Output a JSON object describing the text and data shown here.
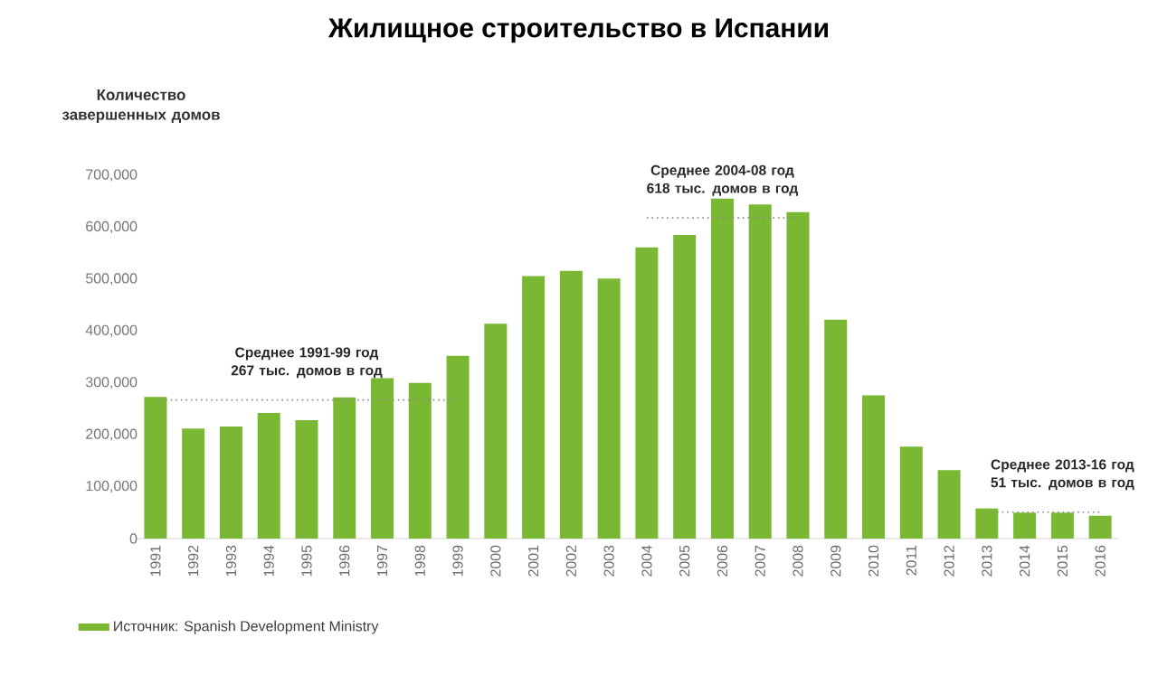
{
  "chart_data": {
    "type": "bar",
    "title": "Жилищное строительство в Испании",
    "ylabel": "Количество завершенных домов",
    "categories": [
      "1991",
      "1992",
      "1993",
      "1994",
      "1995",
      "1996",
      "1997",
      "1998",
      "1999",
      "2000",
      "2001",
      "2002",
      "2003",
      "2004",
      "2005",
      "2006",
      "2007",
      "2008",
      "2009",
      "2010",
      "2011",
      "2012",
      "2013",
      "2014",
      "2015",
      "2016"
    ],
    "series": [
      {
        "name": "Источник: Spanish Development Ministry",
        "color": "#7ab833",
        "values": [
          273000,
          212000,
          216000,
          242000,
          228000,
          272000,
          309000,
          300000,
          352000,
          414000,
          506000,
          516000,
          501000,
          561000,
          585000,
          655000,
          644000,
          629000,
          422000,
          276000,
          177000,
          132000,
          58000,
          50000,
          50000,
          44000
        ]
      },
      {
        "type": "line",
        "color": "#8a8a8a",
        "line_style": "dotted",
        "values": [
          267000,
          267000,
          267000,
          267000,
          267000,
          267000,
          267000,
          267000,
          267000,
          null,
          null,
          null,
          null,
          null,
          null,
          null,
          null,
          null,
          null,
          null,
          null,
          null,
          null,
          null,
          null,
          null
        ]
      },
      {
        "type": "line",
        "color": "#8a8a8a",
        "line_style": "dotted",
        "values": [
          null,
          null,
          null,
          null,
          null,
          null,
          null,
          null,
          null,
          null,
          null,
          null,
          null,
          618000,
          618000,
          618000,
          618000,
          618000,
          null,
          null,
          null,
          null,
          null,
          null,
          null,
          null
        ]
      },
      {
        "type": "line",
        "color": "#8a8a8a",
        "line_style": "dotted",
        "values": [
          null,
          null,
          null,
          null,
          null,
          null,
          null,
          null,
          null,
          null,
          null,
          null,
          null,
          null,
          null,
          null,
          null,
          null,
          null,
          null,
          null,
          null,
          51000,
          51000,
          51000,
          51000
        ]
      }
    ],
    "ylim": [
      0,
      700000
    ],
    "yticks": [
      0,
      {
        "value": 100000,
        "label": "100,000"
      },
      {
        "value": 200000,
        "label": "200,000"
      },
      {
        "value": 300000,
        "label": "300,000"
      },
      {
        "value": 400000,
        "label": "400,000"
      },
      {
        "value": 500000,
        "label": "500,000"
      },
      {
        "value": 600000,
        "label": "600,000"
      },
      {
        "value": 700000,
        "label": "700,000"
      }
    ],
    "annotations": [
      {
        "text": "Среднее 1991-99 год 267 тыс. домов в год",
        "x": "1995",
        "y": 267000
      },
      {
        "text": "Среднее 2004-08 год 618 тыс. домов в год",
        "x": "2006",
        "y": 618000
      },
      {
        "text": "Среднее 2013-16 год 51 тыс. домов в год",
        "x": "2015",
        "y": 51000
      }
    ],
    "legend": "bottom left"
  }
}
